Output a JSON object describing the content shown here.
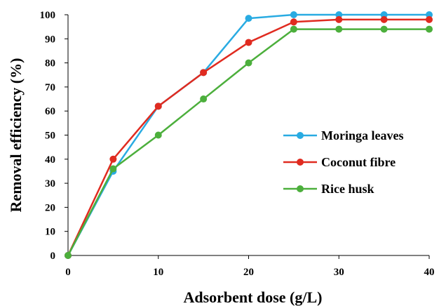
{
  "chart_data": {
    "type": "line",
    "xlabel": "Adsorbent dose (g/L)",
    "ylabel": "Removal efficiency (%)",
    "xlim": [
      0,
      40
    ],
    "ylim": [
      0,
      100
    ],
    "xticks": [
      0,
      10,
      20,
      30,
      40
    ],
    "yticks": [
      0,
      10,
      20,
      30,
      40,
      50,
      60,
      70,
      80,
      90,
      100
    ],
    "grid": false,
    "legend_position": "right",
    "x": [
      0,
      5,
      10,
      15,
      20,
      25,
      30,
      35,
      40
    ],
    "series": [
      {
        "name": "Moringa leaves",
        "color": "#29abe2",
        "values": [
          0,
          35,
          62,
          76,
          98.5,
          100,
          100,
          100,
          100
        ]
      },
      {
        "name": "Coconut fibre",
        "color": "#e02b20",
        "values": [
          0,
          40,
          62,
          76,
          88.5,
          97,
          98,
          98,
          98
        ]
      },
      {
        "name": "Rice husk",
        "color": "#4caf3c",
        "values": [
          0,
          36,
          50,
          65,
          80,
          94,
          94,
          94,
          94
        ]
      }
    ]
  }
}
